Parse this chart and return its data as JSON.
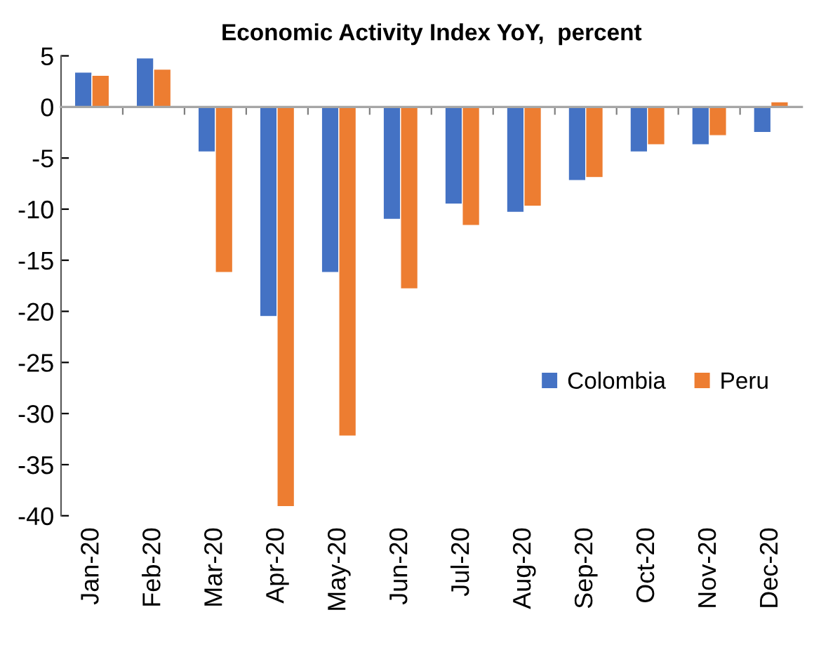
{
  "chart_data": {
    "type": "bar",
    "title": "Economic Activity Index YoY,  percent",
    "categories": [
      "Jan-20",
      "Feb-20",
      "Mar-20",
      "Apr-20",
      "May-20",
      "Jun-20",
      "Jul-20",
      "Aug-20",
      "Sep-20",
      "Oct-20",
      "Nov-20",
      "Dec-20"
    ],
    "series": [
      {
        "name": "Colombia",
        "color": "#4472c4",
        "values": [
          3.4,
          4.8,
          -4.4,
          -20.5,
          -16.2,
          -11.0,
          -9.5,
          -10.3,
          -7.2,
          -4.4,
          -3.7,
          -2.5
        ]
      },
      {
        "name": "Peru",
        "color": "#ed7d31",
        "values": [
          3.1,
          3.7,
          -16.2,
          -39.1,
          -32.2,
          -17.8,
          -11.6,
          -9.7,
          -6.9,
          -3.7,
          -2.8,
          0.5
        ]
      }
    ],
    "ylim": [
      -40,
      5
    ],
    "yticks": [
      5,
      0,
      -5,
      -10,
      -15,
      -20,
      -25,
      -30,
      -35,
      -40
    ],
    "legend": "right"
  }
}
